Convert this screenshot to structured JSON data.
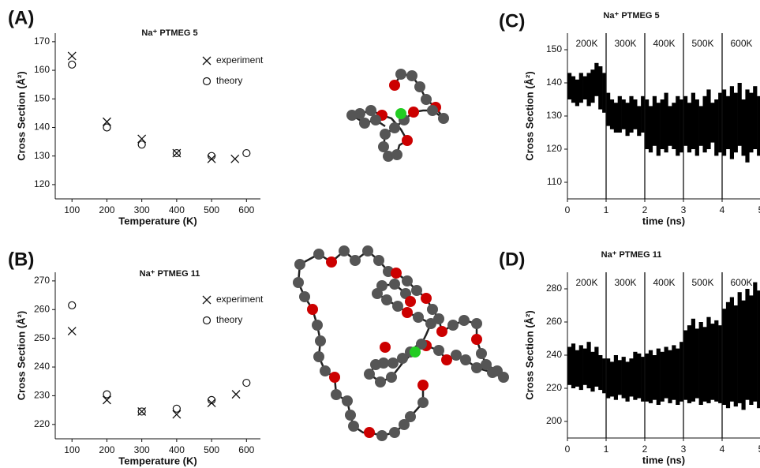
{
  "chart_data": [
    {
      "type": "scatter",
      "panel": "(A)",
      "title": "Na⁺ PTMEG 5",
      "xlabel": "Temperature (K)",
      "ylabel": "Cross Section (Å²)",
      "xlim": [
        52,
        640
      ],
      "ylim": [
        115,
        173
      ],
      "xticks": [
        100,
        200,
        300,
        400,
        500,
        600
      ],
      "yticks": [
        120,
        130,
        140,
        150,
        160,
        170
      ],
      "series": [
        {
          "name": "experiment",
          "marker": "x",
          "color": "#111111",
          "x": [
            100,
            200,
            300,
            400,
            500,
            567
          ],
          "values": [
            165,
            142,
            136,
            131,
            129,
            129
          ]
        },
        {
          "name": "theory",
          "marker": "o",
          "color": "#111111",
          "x": [
            100,
            200,
            300,
            400,
            500,
            600
          ],
          "values": [
            162,
            140,
            134,
            131,
            130,
            131
          ]
        }
      ]
    },
    {
      "type": "scatter",
      "panel": "(B)",
      "title": "Na⁺ PTMEG 11",
      "xlabel": "Temperature (K)",
      "ylabel": "Cross Section (Å²)",
      "xlim": [
        52,
        640
      ],
      "ylim": [
        215,
        273
      ],
      "xticks": [
        100,
        200,
        300,
        400,
        500,
        600
      ],
      "yticks": [
        220,
        230,
        240,
        250,
        260,
        270
      ],
      "series": [
        {
          "name": "experiment",
          "marker": "x",
          "color": "#111111",
          "x": [
            100,
            200,
            300,
            400,
            500,
            570
          ],
          "values": [
            252.5,
            228.5,
            224.5,
            223.5,
            227.5,
            230.5
          ]
        },
        {
          "name": "theory",
          "marker": "o",
          "color": "#111111",
          "x": [
            100,
            200,
            300,
            400,
            500,
            600
          ],
          "values": [
            261.5,
            230.5,
            224.5,
            225.5,
            228.5,
            234.5
          ]
        }
      ]
    },
    {
      "type": "range",
      "panel": "(C)",
      "title": "Na⁺ PTMEG 5",
      "xlabel": "time (ns)",
      "ylabel": "Cross Section (Å²)",
      "xlim": [
        0,
        5
      ],
      "ylim": [
        105,
        155
      ],
      "xticks": [
        0,
        1,
        2,
        3,
        4,
        5
      ],
      "yticks": [
        110,
        120,
        130,
        140,
        150
      ],
      "dividers": [
        1,
        2,
        3,
        4
      ],
      "annotations": [
        "200K",
        "300K",
        "400K",
        "500K",
        "600K"
      ],
      "color": "#000000",
      "x": [
        0.05,
        0.15,
        0.25,
        0.35,
        0.45,
        0.55,
        0.65,
        0.75,
        0.85,
        0.95,
        1.05,
        1.15,
        1.25,
        1.35,
        1.45,
        1.55,
        1.65,
        1.75,
        1.85,
        1.95,
        2.05,
        2.15,
        2.25,
        2.35,
        2.45,
        2.55,
        2.65,
        2.75,
        2.85,
        2.95,
        3.05,
        3.15,
        3.25,
        3.35,
        3.45,
        3.55,
        3.65,
        3.75,
        3.85,
        3.95,
        4.05,
        4.15,
        4.25,
        4.35,
        4.45,
        4.55,
        4.65,
        4.75,
        4.85,
        4.95
      ],
      "low": [
        135,
        134,
        133,
        134,
        135,
        133,
        134,
        136,
        132,
        131,
        127,
        126,
        125,
        125,
        126,
        124,
        125,
        126,
        124,
        125,
        120,
        119,
        121,
        118,
        120,
        119,
        121,
        120,
        118,
        119,
        121,
        119,
        120,
        118,
        121,
        119,
        120,
        122,
        118,
        119,
        118,
        120,
        117,
        119,
        121,
        118,
        116,
        119,
        120,
        118
      ],
      "high": [
        143,
        142,
        141,
        143,
        142,
        143,
        144,
        146,
        145,
        143,
        137,
        135,
        134,
        136,
        135,
        134,
        136,
        135,
        133,
        136,
        135,
        133,
        136,
        134,
        135,
        137,
        133,
        134,
        136,
        135,
        136,
        134,
        137,
        135,
        133,
        136,
        138,
        134,
        135,
        137,
        138,
        136,
        139,
        137,
        140,
        135,
        138,
        137,
        139,
        136
      ]
    },
    {
      "type": "range",
      "panel": "(D)",
      "title": "Na⁺ PTMEG 11",
      "xlabel": "time (ns)",
      "ylabel": "Cross Section (Å²)",
      "xlim": [
        0,
        5
      ],
      "ylim": [
        190,
        290
      ],
      "xticks": [
        0,
        1,
        2,
        3,
        4,
        5
      ],
      "yticks": [
        200,
        220,
        240,
        260,
        280
      ],
      "dividers": [
        1,
        2,
        3,
        4
      ],
      "annotations": [
        "200K",
        "300K",
        "400K",
        "500K",
        "600K"
      ],
      "color": "#000000",
      "x": [
        0.05,
        0.15,
        0.25,
        0.35,
        0.45,
        0.55,
        0.65,
        0.75,
        0.85,
        0.95,
        1.05,
        1.15,
        1.25,
        1.35,
        1.45,
        1.55,
        1.65,
        1.75,
        1.85,
        1.95,
        2.05,
        2.15,
        2.25,
        2.35,
        2.45,
        2.55,
        2.65,
        2.75,
        2.85,
        2.95,
        3.05,
        3.15,
        3.25,
        3.35,
        3.45,
        3.55,
        3.65,
        3.75,
        3.85,
        3.95,
        4.05,
        4.15,
        4.25,
        4.35,
        4.45,
        4.55,
        4.65,
        4.75,
        4.85,
        4.95
      ],
      "low": [
        222,
        220,
        221,
        219,
        222,
        220,
        218,
        221,
        219,
        217,
        214,
        215,
        213,
        216,
        214,
        212,
        215,
        213,
        214,
        212,
        212,
        211,
        213,
        210,
        212,
        214,
        211,
        213,
        210,
        212,
        213,
        211,
        212,
        214,
        210,
        212,
        211,
        213,
        212,
        211,
        210,
        208,
        212,
        209,
        211,
        207,
        213,
        210,
        212,
        208
      ],
      "high": [
        245,
        247,
        243,
        246,
        244,
        248,
        242,
        245,
        240,
        238,
        238,
        236,
        240,
        237,
        239,
        236,
        238,
        242,
        241,
        239,
        241,
        243,
        240,
        244,
        242,
        245,
        243,
        246,
        244,
        248,
        255,
        258,
        262,
        256,
        260,
        257,
        263,
        259,
        261,
        258,
        268,
        272,
        275,
        270,
        278,
        273,
        280,
        276,
        284,
        279
      ]
    }
  ]
}
